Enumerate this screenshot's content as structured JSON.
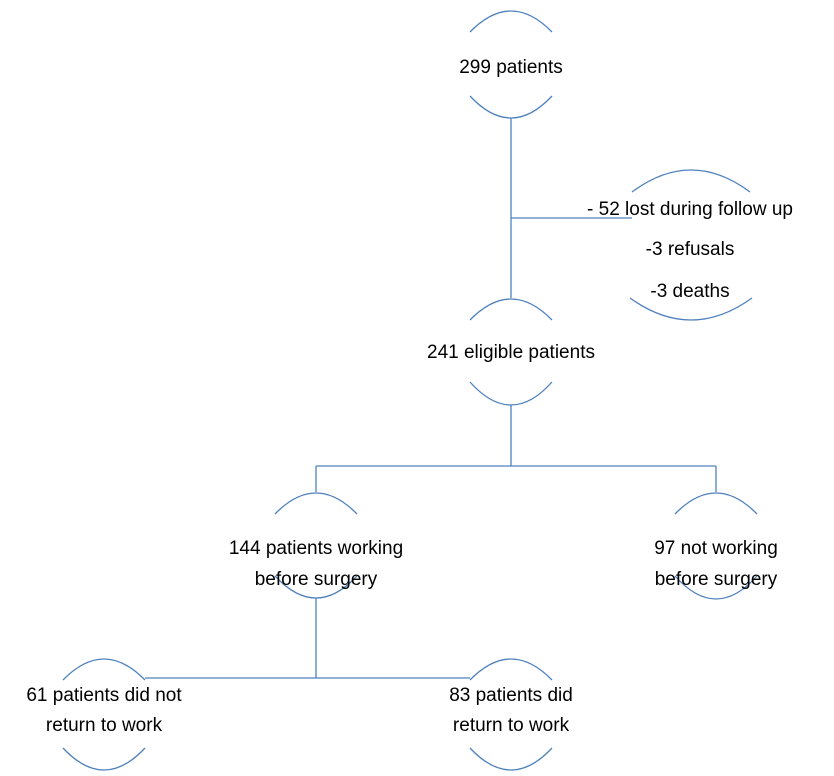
{
  "nodes": [
    {
      "lines": [
        "299 patients"
      ]
    },
    {
      "lines": [
        "- 52 lost during follow up",
        "-3 refusals",
        "-3 deaths"
      ]
    },
    {
      "lines": [
        "241 eligible patients"
      ]
    },
    {
      "lines": [
        "144 patients working",
        "before surgery"
      ]
    },
    {
      "lines": [
        "97 not working",
        "before surgery"
      ]
    },
    {
      "lines": [
        "61 patients did not",
        "return to work"
      ]
    },
    {
      "lines": [
        "83 patients did",
        "return to work"
      ]
    }
  ]
}
